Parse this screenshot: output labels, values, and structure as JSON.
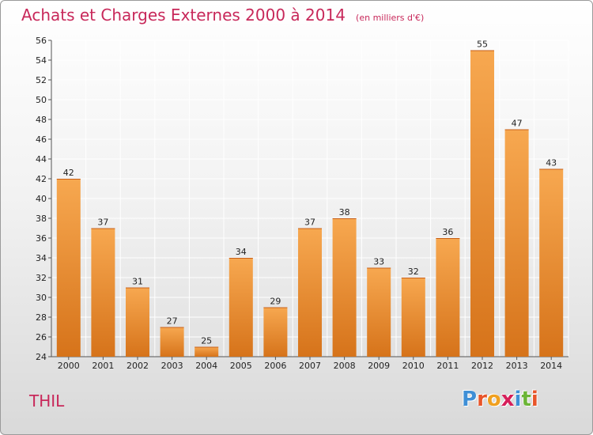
{
  "header": {
    "title": "Achats et Charges Externes 2000 à 2014",
    "unit": "(en milliers d'€)"
  },
  "footer": {
    "commune": "THIL",
    "logo_text": "Proxiti"
  },
  "colors": {
    "title": "#c8285a",
    "bar_light": "#f6a54a",
    "bar_dark": "#d8771a",
    "grid": "#ffffff"
  },
  "chart_data": {
    "type": "bar",
    "title": "Achats et Charges Externes 2000 à 2014",
    "subtitle": "(en milliers d'€)",
    "xlabel": "",
    "ylabel": "",
    "categories": [
      "2000",
      "2001",
      "2002",
      "2003",
      "2004",
      "2005",
      "2006",
      "2007",
      "2008",
      "2009",
      "2010",
      "2011",
      "2012",
      "2013",
      "2014"
    ],
    "values": [
      42,
      37,
      31,
      27,
      25,
      34,
      29,
      37,
      38,
      33,
      32,
      36,
      55,
      47,
      43
    ],
    "ylim": [
      24,
      56
    ],
    "yticks": [
      24,
      26,
      28,
      30,
      32,
      34,
      36,
      38,
      40,
      42,
      44,
      46,
      48,
      50,
      52,
      54,
      56
    ],
    "grid": true,
    "legend": "none"
  }
}
